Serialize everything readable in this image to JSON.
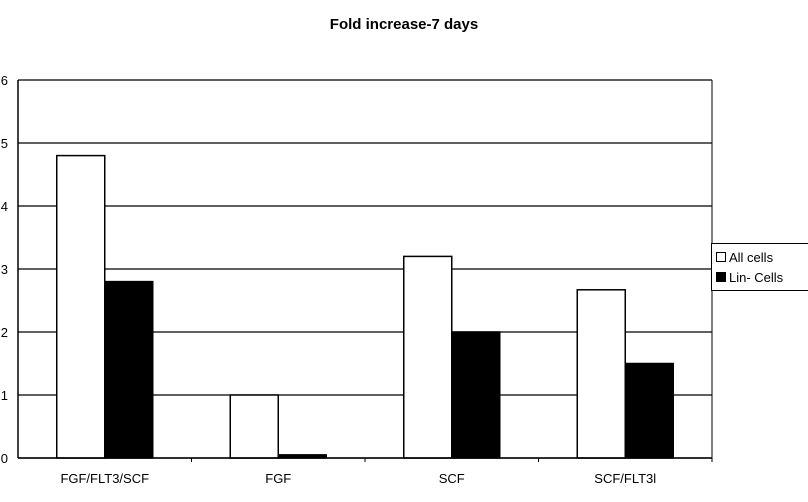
{
  "chart_data": {
    "type": "bar",
    "title": "Fold increase-7 days",
    "categories": [
      "FGF/FLT3/SCF",
      "FGF",
      "SCF",
      "SCF/FLT3l"
    ],
    "series": [
      {
        "name": "All cells",
        "values": [
          4.8,
          1.0,
          3.2,
          2.67
        ],
        "color": "#ffffff"
      },
      {
        "name": "Lin- Cells",
        "values": [
          2.8,
          0.05,
          2.0,
          1.5
        ],
        "color": "#000000"
      }
    ],
    "ylim": [
      0,
      6
    ],
    "yticks": [
      0,
      1,
      2,
      3,
      4,
      5,
      6
    ],
    "xlabel": "",
    "ylabel": "",
    "grid": true,
    "legend": "right"
  }
}
